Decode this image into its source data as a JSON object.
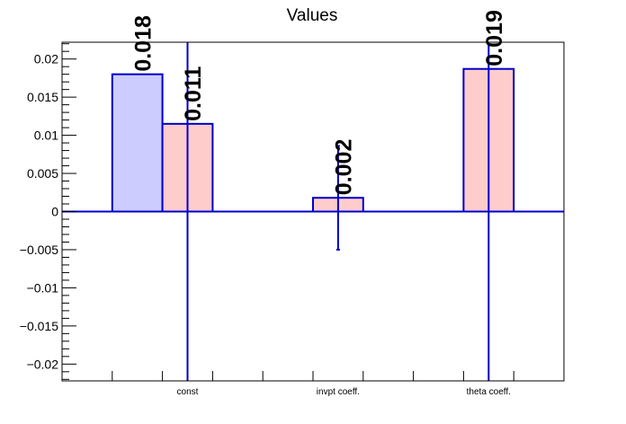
{
  "chart_data": {
    "type": "bar",
    "title": "Values",
    "xlabel": "",
    "ylabel": "",
    "ylim": [
      -0.0222,
      0.0222
    ],
    "yticks": [
      0.02,
      0.015,
      0.01,
      0.005,
      0,
      -0.005,
      -0.01,
      -0.015,
      -0.02
    ],
    "ytick_labels": [
      "0.02",
      "0.015",
      "0.01",
      "0.005",
      "0",
      "−0.005",
      "−0.01",
      "−0.015",
      "−0.02"
    ],
    "category_labels": [
      "const",
      "invpt coeff.",
      "theta coeff."
    ],
    "bars": [
      {
        "slot": 1,
        "value": 0.018,
        "label": "0.018",
        "fill": "#ccccff",
        "error": null
      },
      {
        "slot": 2,
        "value": 0.0115,
        "label": "0.011",
        "fill": "#ffcccc",
        "error": 0.06
      },
      {
        "slot": 5,
        "value": 0.0018,
        "label": "0.002",
        "fill": "#ffcccc",
        "error": 0.0068
      },
      {
        "slot": 8,
        "value": 0.0187,
        "label": "0.019",
        "fill": "#ffcccc",
        "error": 0.06
      }
    ],
    "category_slots": [
      2,
      5,
      8
    ],
    "num_slots": 9,
    "grid": false,
    "legend": "none",
    "colors": {
      "line": "#0000cc",
      "axis": "#000000"
    }
  }
}
